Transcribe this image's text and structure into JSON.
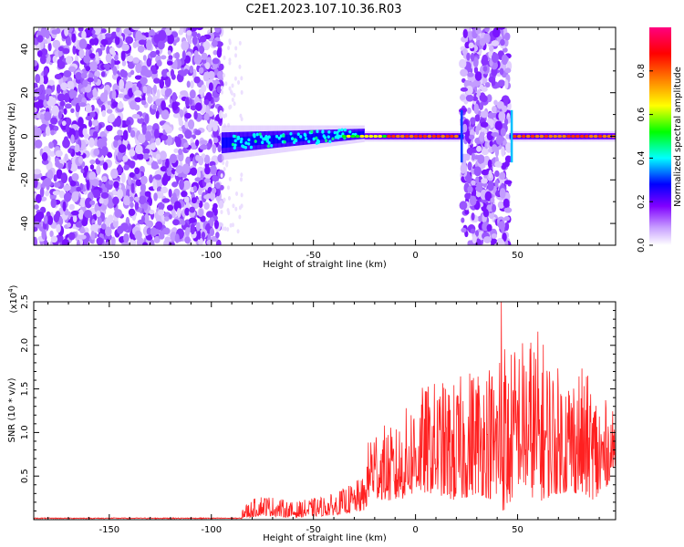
{
  "title": "C2E1.2023.107.10.36.R03",
  "chart_data": [
    {
      "type": "heatmap",
      "xlabel": "Height of straight line (km)",
      "ylabel": "Frequency (Hz)",
      "xlim": [
        -187,
        98
      ],
      "ylim": [
        -50,
        50
      ],
      "xticks": [
        -150,
        -100,
        -50,
        0,
        50
      ],
      "yticks": [
        -40,
        -20,
        0,
        20,
        40
      ],
      "noise_region_1_x": [
        -187,
        -95
      ],
      "noise_region_2_x": [
        23,
        46
      ],
      "signal_center_freq_hz": 0,
      "colorbar": {
        "label": "Normalized spectral amplitude",
        "range": [
          0,
          1
        ],
        "ticks": [
          "0.0",
          "0.2",
          "0.4",
          "0.6",
          "0.8"
        ],
        "colors": [
          "#ffffff",
          "#c8a0ff",
          "#8000ff",
          "#0000ff",
          "#00ffff",
          "#00ff00",
          "#ffff00",
          "#ff8000",
          "#ff0000",
          "#ff0080"
        ]
      }
    },
    {
      "type": "line",
      "xlabel": "Height of straight line (km)",
      "ylabel": "SNR (10 * v/v)",
      "multiplier_label": "(x10",
      "multiplier_exp": "4",
      "multiplier_close": ")",
      "xlim": [
        -187,
        98
      ],
      "ylim": [
        0,
        2.5
      ],
      "xticks": [
        -150,
        -100,
        -50,
        0,
        50
      ],
      "yticks": [
        "0.5",
        "1.0",
        "1.5",
        "2.0",
        "2.5"
      ],
      "color": "#ff2020",
      "series_envelope": {
        "x": [
          -187,
          -100,
          -82,
          -75,
          -60,
          -40,
          -25,
          -22,
          -10,
          0,
          10,
          20,
          30,
          40,
          42,
          45,
          50,
          60,
          70,
          80,
          90,
          98
        ],
        "low": [
          0.0,
          0.0,
          0.02,
          0.05,
          0.02,
          0.05,
          0.1,
          0.25,
          0.2,
          0.3,
          0.3,
          0.2,
          0.3,
          0.2,
          0.1,
          0.1,
          0.4,
          0.2,
          0.3,
          0.3,
          0.2,
          0.6
        ],
        "high": [
          0.03,
          0.03,
          0.2,
          0.3,
          0.2,
          0.3,
          0.5,
          1.15,
          1.05,
          1.5,
          1.6,
          1.6,
          1.85,
          1.85,
          2.5,
          1.9,
          2.1,
          2.2,
          1.75,
          1.8,
          1.5,
          1.2
        ]
      },
      "peak": {
        "x": 42,
        "y": 2.5
      }
    }
  ]
}
